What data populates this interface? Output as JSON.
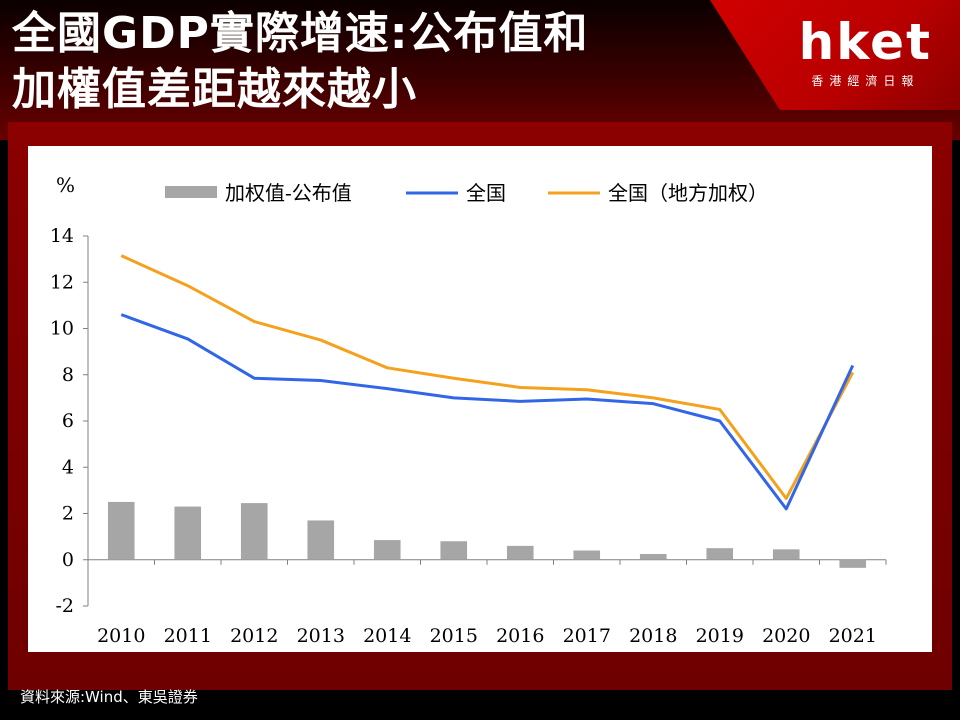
{
  "header": {
    "title_line1": "全國GDP實際增速:公布值和",
    "title_line2": "加權值差距越來越小"
  },
  "logo": {
    "word": "hket",
    "subtitle": "香港經濟日報"
  },
  "footer": {
    "source": "資料來源:Wind、東吳證券"
  },
  "colors": {
    "bar": "#a6a6a6",
    "national": "#3366e6",
    "weighted": "#f4a11e",
    "accent": "#b80000"
  },
  "chart_data": {
    "type": "bar+line",
    "categories": [
      "2010",
      "2011",
      "2012",
      "2013",
      "2014",
      "2015",
      "2016",
      "2017",
      "2018",
      "2019",
      "2020",
      "2021"
    ],
    "series": [
      {
        "name": "加权值-公布值",
        "type": "bar",
        "values": [
          2.5,
          2.3,
          2.45,
          1.7,
          0.85,
          0.8,
          0.6,
          0.4,
          0.25,
          0.5,
          0.45,
          -0.35
        ]
      },
      {
        "name": "全国",
        "type": "line",
        "values": [
          10.6,
          9.55,
          7.85,
          7.75,
          7.4,
          7.0,
          6.85,
          6.95,
          6.75,
          6.0,
          2.2,
          8.4
        ]
      },
      {
        "name": "全国（地方加权）",
        "type": "line",
        "values": [
          13.15,
          11.85,
          10.3,
          9.5,
          8.3,
          7.85,
          7.45,
          7.35,
          7.0,
          6.5,
          2.65,
          8.1
        ]
      }
    ],
    "yunit": "%",
    "ylim": [
      -2,
      14
    ],
    "yticks": [
      "-2",
      "0",
      "2",
      "4",
      "6",
      "8",
      "10",
      "12",
      "14"
    ],
    "grid": false,
    "legend_position": "top"
  }
}
